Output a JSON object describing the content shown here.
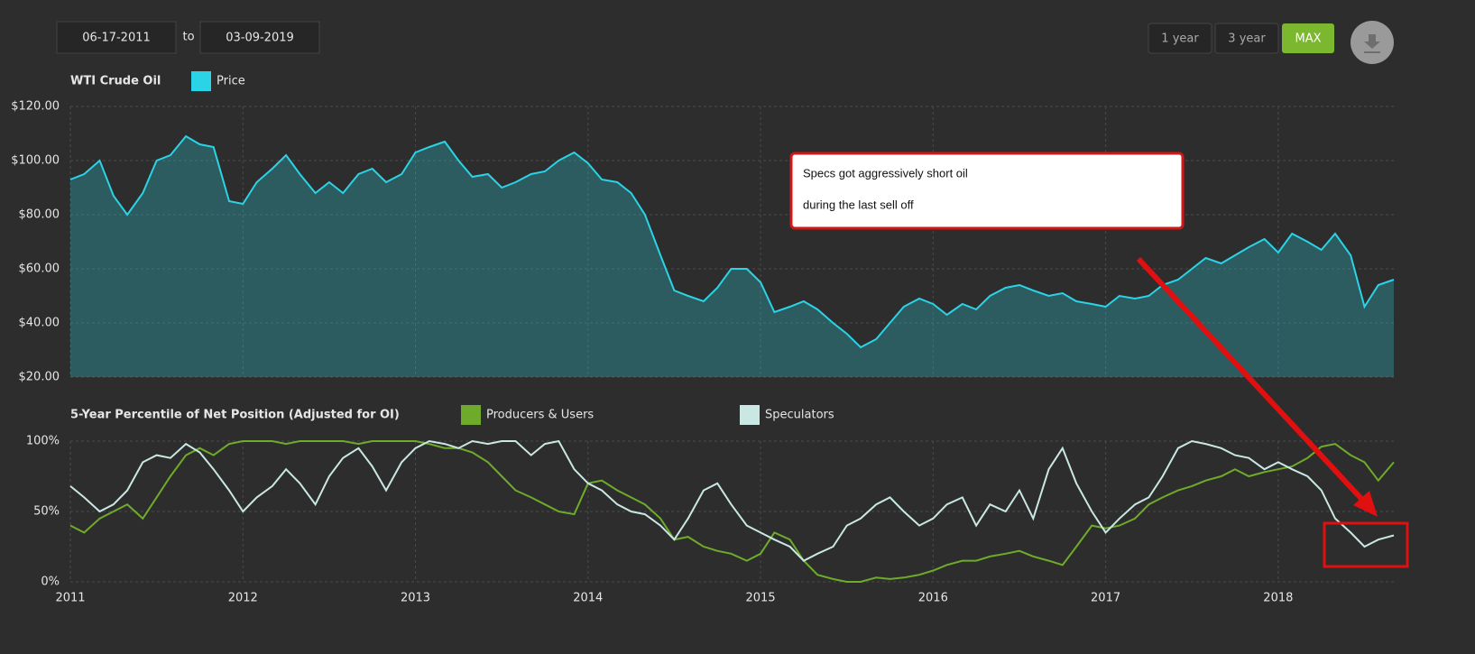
{
  "controls": {
    "start_date": "06-17-2011",
    "to": "to",
    "end_date": "03-09-2019",
    "ranges": [
      "1 year",
      "3 year",
      "MAX"
    ]
  },
  "annotation": [
    "Specs got aggressively short oil",
    "during the last sell off"
  ],
  "chart_data": [
    {
      "type": "line",
      "title": "WTI Crude Oil",
      "area": true,
      "grid": true,
      "x": [
        2011,
        2011.08,
        2011.17,
        2011.25,
        2011.33,
        2011.42,
        2011.5,
        2011.58,
        2011.67,
        2011.75,
        2011.83,
        2011.92,
        2012,
        2012.08,
        2012.17,
        2012.25,
        2012.33,
        2012.42,
        2012.5,
        2012.58,
        2012.67,
        2012.75,
        2012.83,
        2012.92,
        2013,
        2013.08,
        2013.17,
        2013.25,
        2013.33,
        2013.42,
        2013.5,
        2013.58,
        2013.67,
        2013.75,
        2013.83,
        2013.92,
        2014,
        2014.08,
        2014.17,
        2014.25,
        2014.33,
        2014.42,
        2014.5,
        2014.58,
        2014.67,
        2014.75,
        2014.83,
        2014.92,
        2015,
        2015.08,
        2015.17,
        2015.25,
        2015.33,
        2015.42,
        2015.5,
        2015.58,
        2015.67,
        2015.75,
        2015.83,
        2015.92,
        2016,
        2016.08,
        2016.17,
        2016.25,
        2016.33,
        2016.42,
        2016.5,
        2016.58,
        2016.67,
        2016.75,
        2016.83,
        2016.92,
        2017,
        2017.08,
        2017.17,
        2017.25,
        2017.33,
        2017.42,
        2017.5,
        2017.58,
        2017.67,
        2017.75,
        2017.83,
        2017.92,
        2018,
        2018.08,
        2018.17,
        2018.25,
        2018.33,
        2018.42,
        2018.5,
        2018.58,
        2018.67
      ],
      "xlim": [
        2011,
        2018.67
      ],
      "ylim": [
        20,
        120
      ],
      "yticks": [
        {
          "value": 20,
          "label": "$20.00"
        },
        {
          "value": 40,
          "label": "$40.00"
        },
        {
          "value": 60,
          "label": "$60.00"
        },
        {
          "value": 80,
          "label": "$80.00"
        },
        {
          "value": 100,
          "label": "$100.00"
        },
        {
          "value": 120,
          "label": "$120.00"
        }
      ],
      "series": [
        {
          "name": "Price",
          "color": "#2ad4e6",
          "values": [
            93,
            95,
            100,
            87,
            80,
            88,
            100,
            102,
            109,
            106,
            105,
            85,
            84,
            92,
            97,
            102,
            95,
            88,
            92,
            88,
            95,
            97,
            92,
            95,
            103,
            105,
            107,
            100,
            94,
            95,
            90,
            92,
            95,
            96,
            100,
            103,
            99,
            93,
            92,
            88,
            80,
            65,
            52,
            50,
            48,
            53,
            60,
            60,
            55,
            44,
            46,
            48,
            45,
            40,
            36,
            31,
            34,
            40,
            46,
            49,
            47,
            43,
            47,
            45,
            50,
            53,
            54,
            52,
            50,
            51,
            48,
            47,
            46,
            50,
            49,
            50,
            54,
            56,
            60,
            64,
            62,
            65,
            68,
            71,
            66,
            73,
            70,
            67,
            73,
            65,
            46,
            54,
            56
          ]
        }
      ]
    },
    {
      "type": "line",
      "title": "5-Year Percentile of Net Position (Adjusted for OI)",
      "area": false,
      "grid": true,
      "x": [
        2011,
        2011.08,
        2011.17,
        2011.25,
        2011.33,
        2011.42,
        2011.5,
        2011.58,
        2011.67,
        2011.75,
        2011.83,
        2011.92,
        2012,
        2012.08,
        2012.17,
        2012.25,
        2012.33,
        2012.42,
        2012.5,
        2012.58,
        2012.67,
        2012.75,
        2012.83,
        2012.92,
        2013,
        2013.08,
        2013.17,
        2013.25,
        2013.33,
        2013.42,
        2013.5,
        2013.58,
        2013.67,
        2013.75,
        2013.83,
        2013.92,
        2014,
        2014.08,
        2014.17,
        2014.25,
        2014.33,
        2014.42,
        2014.5,
        2014.58,
        2014.67,
        2014.75,
        2014.83,
        2014.92,
        2015,
        2015.08,
        2015.17,
        2015.25,
        2015.33,
        2015.42,
        2015.5,
        2015.58,
        2015.67,
        2015.75,
        2015.83,
        2015.92,
        2016,
        2016.08,
        2016.17,
        2016.25,
        2016.33,
        2016.42,
        2016.5,
        2016.58,
        2016.67,
        2016.75,
        2016.83,
        2016.92,
        2017,
        2017.08,
        2017.17,
        2017.25,
        2017.33,
        2017.42,
        2017.5,
        2017.58,
        2017.67,
        2017.75,
        2017.83,
        2017.92,
        2018,
        2018.08,
        2018.17,
        2018.25,
        2018.33,
        2018.42,
        2018.5,
        2018.58,
        2018.67
      ],
      "xlim": [
        2011,
        2018.67
      ],
      "xticks": [
        2011,
        2012,
        2013,
        2014,
        2015,
        2016,
        2017,
        2018
      ],
      "ylim": [
        0,
        100
      ],
      "yticks": [
        {
          "value": 0,
          "label": "0%"
        },
        {
          "value": 50,
          "label": "50%"
        },
        {
          "value": 100,
          "label": "100%"
        }
      ],
      "series": [
        {
          "name": "Producers & Users",
          "color": "#6fab2a",
          "values": [
            40,
            35,
            45,
            50,
            55,
            45,
            60,
            75,
            90,
            95,
            90,
            98,
            100,
            100,
            100,
            98,
            100,
            100,
            100,
            100,
            98,
            100,
            100,
            100,
            100,
            98,
            95,
            95,
            92,
            85,
            75,
            65,
            60,
            55,
            50,
            48,
            70,
            72,
            65,
            60,
            55,
            45,
            30,
            32,
            25,
            22,
            20,
            15,
            20,
            35,
            30,
            15,
            5,
            2,
            0,
            0,
            3,
            2,
            3,
            5,
            8,
            12,
            15,
            15,
            18,
            20,
            22,
            18,
            15,
            12,
            25,
            40,
            38,
            40,
            45,
            55,
            60,
            65,
            68,
            72,
            75,
            80,
            75,
            78,
            80,
            82,
            88,
            96,
            98,
            90,
            85,
            72,
            85
          ]
        },
        {
          "name": "Speculators",
          "color": "#c9e8e3",
          "values": [
            68,
            60,
            50,
            55,
            65,
            85,
            90,
            88,
            98,
            92,
            80,
            65,
            50,
            60,
            68,
            80,
            70,
            55,
            75,
            88,
            95,
            82,
            65,
            85,
            95,
            100,
            98,
            95,
            100,
            98,
            100,
            100,
            90,
            98,
            100,
            80,
            70,
            65,
            55,
            50,
            48,
            40,
            30,
            45,
            65,
            70,
            55,
            40,
            35,
            30,
            25,
            15,
            20,
            25,
            40,
            45,
            55,
            60,
            50,
            40,
            45,
            55,
            60,
            40,
            55,
            50,
            65,
            45,
            80,
            95,
            70,
            50,
            35,
            45,
            55,
            60,
            75,
            95,
            100,
            98,
            95,
            90,
            88,
            80,
            85,
            80,
            75,
            65,
            45,
            35,
            25,
            30,
            33
          ]
        }
      ]
    }
  ]
}
